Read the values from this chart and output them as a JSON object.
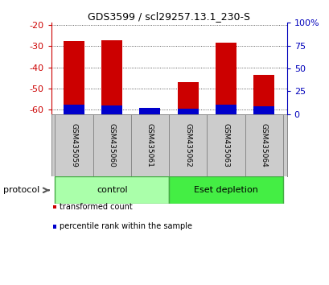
{
  "title": "GDS3599 / scl29257.13.1_230-S",
  "samples": [
    "GSM435059",
    "GSM435060",
    "GSM435061",
    "GSM435062",
    "GSM435063",
    "GSM435064"
  ],
  "red_values": [
    -27.5,
    -27.2,
    -59.5,
    -47.0,
    -28.5,
    -43.5
  ],
  "blue_values": [
    -57.5,
    -58.0,
    -59.0,
    -59.5,
    -57.5,
    -58.5
  ],
  "ylim_left": [
    -62,
    -19
  ],
  "yticks_left": [
    -60,
    -50,
    -40,
    -30,
    -20
  ],
  "yticks_right": [
    0,
    25,
    50,
    75,
    100
  ],
  "yticklabels_right": [
    "0",
    "25",
    "50",
    "75",
    "100%"
  ],
  "groups": [
    {
      "label": "control",
      "indices": [
        0,
        1,
        2
      ],
      "color": "#aaffaa"
    },
    {
      "label": "Eset depletion",
      "indices": [
        3,
        4,
        5
      ],
      "color": "#44ee44"
    }
  ],
  "protocol_label": "protocol",
  "legend_items": [
    {
      "color": "#cc0000",
      "label": "transformed count"
    },
    {
      "color": "#0000cc",
      "label": "percentile rank within the sample"
    }
  ],
  "bar_width": 0.55,
  "red_color": "#cc0000",
  "blue_color": "#0000cc",
  "grid_color": "#000000",
  "bg_color": "#ffffff",
  "sample_box_color": "#cccccc",
  "left_tick_color": "#cc0000",
  "right_tick_color": "#0000bb"
}
